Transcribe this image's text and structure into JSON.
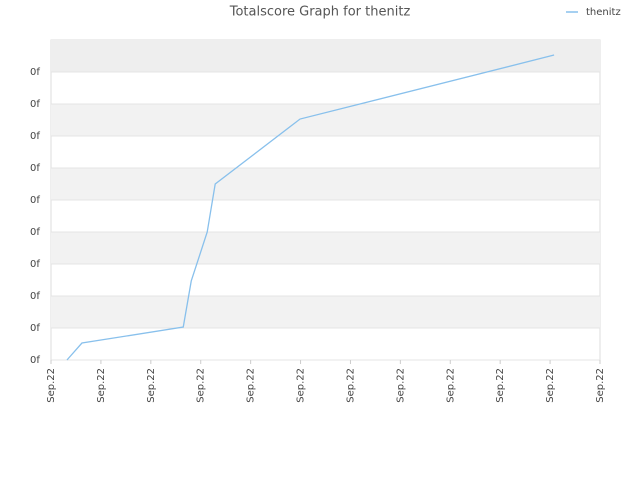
{
  "chart_data": {
    "type": "line",
    "title": "Totalscore Graph for thenitz",
    "series": [
      {
        "name": "thenitz",
        "color": "#88c0ec",
        "x": [
          0.32,
          0.62,
          2.65,
          2.81,
          3.13,
          3.29,
          4.99,
          10.08
        ],
        "values": [
          0,
          0.53,
          1.03,
          2.47,
          4.0,
          5.5,
          7.53,
          9.53
        ]
      }
    ],
    "xlim": [
      0,
      11
    ],
    "xticks": [
      {
        "value": 0,
        "label": "Sep.22"
      },
      {
        "value": 1,
        "label": "Sep.22"
      },
      {
        "value": 2,
        "label": "Sep.22"
      },
      {
        "value": 3,
        "label": "Sep.22"
      },
      {
        "value": 4,
        "label": "Sep.22"
      },
      {
        "value": 5,
        "label": "Sep.22"
      },
      {
        "value": 6,
        "label": "Sep.22"
      },
      {
        "value": 7,
        "label": "Sep.22"
      },
      {
        "value": 8,
        "label": "Sep.22"
      },
      {
        "value": 9,
        "label": "Sep.22"
      },
      {
        "value": 10,
        "label": "Sep.22"
      },
      {
        "value": 11,
        "label": "Sep.22"
      }
    ],
    "ylim": [
      0,
      10
    ],
    "yticks": [
      {
        "value": 0,
        "label": "0f"
      },
      {
        "value": 1,
        "label": "0f"
      },
      {
        "value": 2,
        "label": "0f"
      },
      {
        "value": 3,
        "label": "0f"
      },
      {
        "value": 4,
        "label": "0f"
      },
      {
        "value": 5,
        "label": "0f"
      },
      {
        "value": 6,
        "label": "0f"
      },
      {
        "value": 7,
        "label": "0f"
      },
      {
        "value": 8,
        "label": "0f"
      },
      {
        "value": 9,
        "label": "0f"
      }
    ],
    "grid": true,
    "legend": "top-right"
  }
}
